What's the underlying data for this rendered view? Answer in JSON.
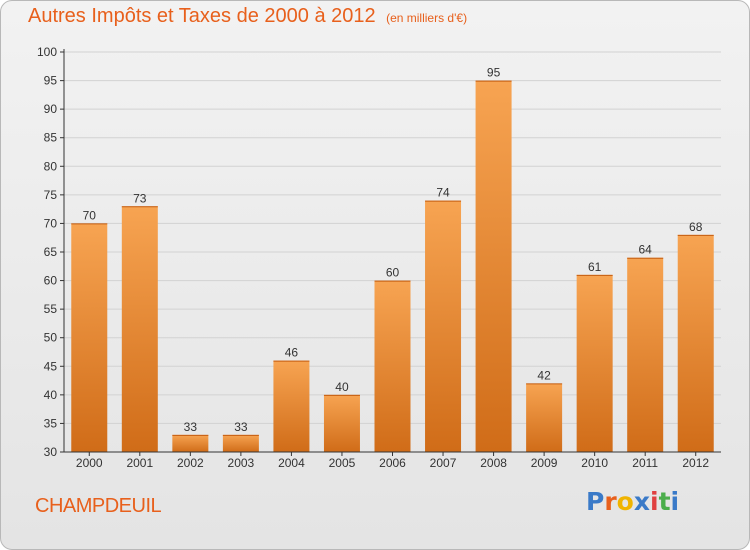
{
  "title": "Autres Impôts et Taxes de 2000 à 2012",
  "subtitle": "(en milliers d'€)",
  "commune": "CHAMPDEUIL",
  "brand": {
    "text": "Proxiti",
    "letters": [
      "P",
      "r",
      "o",
      "x",
      "i",
      "t",
      "i"
    ],
    "colors": [
      "#3a7ac8",
      "#e8601c",
      "#f0b400",
      "#3a7ac8",
      "#e04040",
      "#4cae4c",
      "#3a7ac8"
    ]
  },
  "colors": {
    "title": "#e8601c",
    "bar_light": "#f7a452",
    "bar_dark": "#d06c18",
    "axis": "#333333",
    "grid": "#d2d2d2"
  },
  "chart_data": {
    "type": "bar",
    "categories": [
      "2000",
      "2001",
      "2002",
      "2003",
      "2004",
      "2005",
      "2006",
      "2007",
      "2008",
      "2009",
      "2010",
      "2011",
      "2012"
    ],
    "values": [
      70,
      73,
      33,
      33,
      46,
      40,
      60,
      74,
      95,
      42,
      61,
      64,
      68
    ],
    "ylim": [
      30,
      100
    ],
    "yticks": [
      30,
      35,
      40,
      45,
      50,
      55,
      60,
      65,
      70,
      75,
      80,
      85,
      90,
      95,
      100
    ],
    "grid": true,
    "data_labels": true
  }
}
